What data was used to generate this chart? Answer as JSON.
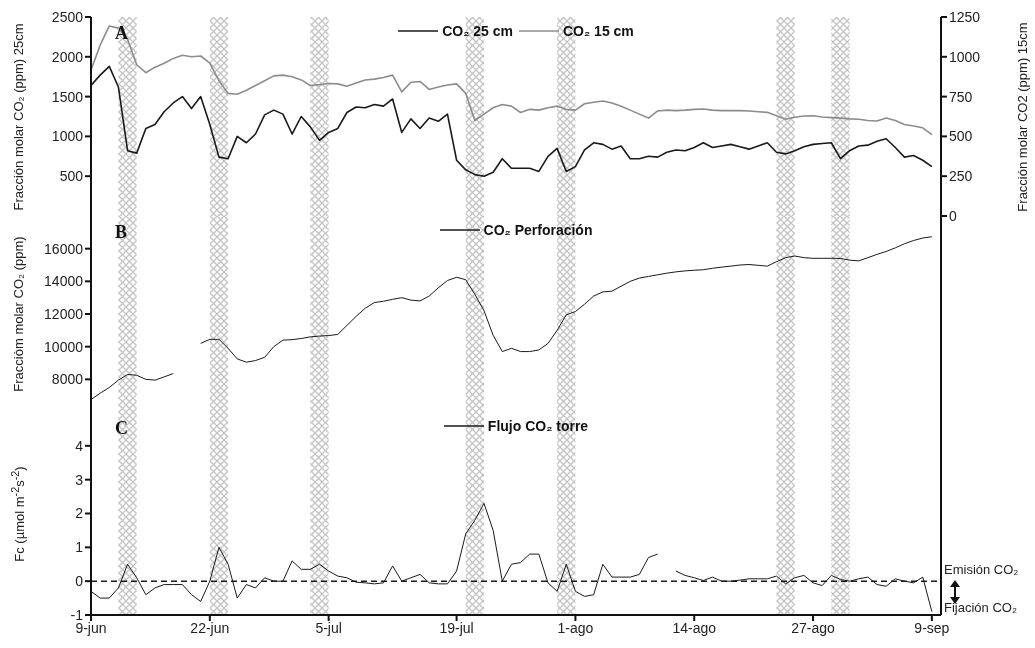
{
  "chart_data": [
    {
      "type": "line",
      "ylabel": "Fracción molar CO₂ (ppm) 25cm",
      "y2label": "Fracción molar CO2 (ppm) 15cm",
      "annotations": [
        "A"
      ],
      "legend": "top",
      "tick_labels": "y",
      "x": [
        "--06-09",
        "--06-10",
        "--06-11",
        "--06-12",
        "--06-13",
        "--06-14",
        "--06-15",
        "--06-16",
        "--06-17",
        "--06-18",
        "--06-19",
        "--06-20",
        "--06-21",
        "--06-22",
        "--06-23",
        "--06-24",
        "--06-25",
        "--06-26",
        "--06-27",
        "--06-28",
        "--06-29",
        "--06-30",
        "--07-01",
        "--07-02",
        "--07-03",
        "--07-04",
        "--07-05",
        "--07-06",
        "--07-07",
        "--07-08",
        "--07-09",
        "--07-10",
        "--07-11",
        "--07-12",
        "--07-13",
        "--07-14",
        "--07-15",
        "--07-16",
        "--07-17",
        "--07-18",
        "--07-19",
        "--07-20",
        "--07-21",
        "--07-22",
        "--07-23",
        "--07-24",
        "--07-25",
        "--07-26",
        "--07-27",
        "--07-28",
        "--07-29",
        "--07-30",
        "--07-31",
        "--08-01",
        "--08-02",
        "--08-03",
        "--08-04",
        "--08-05",
        "--08-06",
        "--08-07",
        "--08-08",
        "--08-09",
        "--08-10",
        "--08-11",
        "--08-12",
        "--08-13",
        "--08-14",
        "--08-15",
        "--08-16",
        "--08-17",
        "--08-18",
        "--08-19",
        "--08-20",
        "--08-21",
        "--08-22",
        "--08-23",
        "--08-24",
        "--08-25",
        "--08-26",
        "--08-27",
        "--08-28",
        "--08-29",
        "--08-30",
        "--08-31",
        "--09-01",
        "--09-02",
        "--09-03",
        "--09-04",
        "--09-05",
        "--09-06",
        "--09-07",
        "--09-08",
        "--09-09"
      ],
      "series": [
        {
          "name": "CO₂ 25 cm",
          "color": "#1a1a1a",
          "values": [
            1640,
            1770,
            1880,
            1620,
            820,
            790,
            1100,
            1150,
            1310,
            1420,
            1500,
            1350,
            1500,
            1150,
            740,
            720,
            1000,
            920,
            1030,
            1270,
            1330,
            1280,
            1030,
            1250,
            1120,
            950,
            1050,
            1100,
            1300,
            1370,
            1360,
            1400,
            1380,
            1470,
            1050,
            1220,
            1100,
            1230,
            1190,
            1280,
            700,
            580,
            520,
            500,
            550,
            720,
            600,
            600,
            600,
            560,
            750,
            850,
            560,
            620,
            830,
            920,
            900,
            840,
            880,
            720,
            720,
            750,
            740,
            800,
            830,
            820,
            860,
            920,
            860,
            880,
            900,
            870,
            840,
            880,
            920,
            800,
            780,
            820,
            870,
            900,
            910,
            920,
            720,
            820,
            880,
            890,
            940,
            970,
            860,
            740,
            760,
            700,
            620
          ]
        },
        {
          "name": "CO₂ 15 cm",
          "color": "#8c8c8c",
          "axis": "y2",
          "values": [
            917,
            1073,
            1194,
            1180,
            1110,
            950,
            900,
            935,
            960,
            990,
            1010,
            1000,
            1005,
            960,
            850,
            770,
            765,
            790,
            820,
            850,
            880,
            885,
            875,
            855,
            820,
            825,
            832,
            830,
            815,
            835,
            854,
            860,
            870,
            885,
            780,
            840,
            845,
            795,
            810,
            823,
            830,
            770,
            600,
            640,
            680,
            700,
            690,
            650,
            670,
            665,
            680,
            690,
            670,
            665,
            705,
            715,
            722,
            710,
            690,
            665,
            640,
            615,
            660,
            665,
            662,
            665,
            670,
            672,
            665,
            662,
            662,
            662,
            660,
            655,
            651,
            630,
            608,
            620,
            628,
            630,
            622,
            618,
            615,
            610,
            608,
            600,
            597,
            615,
            600,
            575,
            565,
            554,
            511
          ]
        }
      ],
      "xlim": [
        "--06-09",
        "--09-10"
      ],
      "xticks": [
        {
          "value": "--06-09",
          "label": "9-jun"
        },
        {
          "value": "--06-22",
          "label": "22-jun"
        },
        {
          "value": "--07-05",
          "label": "5-jul"
        },
        {
          "value": "--07-19",
          "label": "19-jul"
        },
        {
          "value": "--08-01",
          "label": "1-ago"
        },
        {
          "value": "--08-14",
          "label": "14-ago"
        },
        {
          "value": "--08-27",
          "label": "27-ago"
        },
        {
          "value": "--09-09",
          "label": "9-sep"
        }
      ],
      "ylim": [
        0,
        2500
      ],
      "yticks": [
        500,
        1000,
        1500,
        2000,
        2500
      ],
      "y2lim": [
        0,
        1250
      ],
      "y2ticks": [
        0,
        250,
        500,
        750,
        1000,
        1250
      ],
      "bands": [
        {
          "axis": "x",
          "from": "--06-12",
          "to": "--06-14",
          "color": "#c4c4c4"
        },
        {
          "axis": "x",
          "from": "--06-22",
          "to": "--06-24",
          "color": "#c4c4c4"
        },
        {
          "axis": "x",
          "from": "--07-03",
          "to": "--07-05",
          "color": "#c4c4c4"
        },
        {
          "axis": "x",
          "from": "--07-20",
          "to": "--07-22",
          "color": "#c4c4c4"
        },
        {
          "axis": "x",
          "from": "--07-30",
          "to": "--08-01",
          "color": "#c4c4c4"
        },
        {
          "axis": "x",
          "from": "--08-23",
          "to": "--08-25",
          "color": "#c4c4c4"
        },
        {
          "axis": "x",
          "from": "--08-29",
          "to": "--08-31",
          "color": "#c4c4c4"
        }
      ]
    },
    {
      "type": "line",
      "ylabel": "Fracciòm molar CO₂ (ppm)",
      "annotations": [
        "B"
      ],
      "legend": "top",
      "tick_labels": "y",
      "x": [
        "--06-09",
        "--06-10",
        "--06-11",
        "--06-12",
        "--06-13",
        "--06-14",
        "--06-15",
        "--06-16",
        "--06-17",
        "--06-18",
        "--06-19",
        "--06-20",
        "--06-21",
        "--06-22",
        "--06-23",
        "--06-24",
        "--06-25",
        "--06-26",
        "--06-27",
        "--06-28",
        "--06-29",
        "--06-30",
        "--07-01",
        "--07-02",
        "--07-03",
        "--07-04",
        "--07-05",
        "--07-06",
        "--07-07",
        "--07-08",
        "--07-09",
        "--07-10",
        "--07-11",
        "--07-12",
        "--07-13",
        "--07-14",
        "--07-15",
        "--07-16",
        "--07-17",
        "--07-18",
        "--07-19",
        "--07-20",
        "--07-21",
        "--07-22",
        "--07-23",
        "--07-24",
        "--07-25",
        "--07-26",
        "--07-27",
        "--07-28",
        "--07-29",
        "--07-30",
        "--07-31",
        "--08-01",
        "--08-02",
        "--08-03",
        "--08-04",
        "--08-05",
        "--08-06",
        "--08-07",
        "--08-08",
        "--08-09",
        "--08-10",
        "--08-11",
        "--08-12",
        "--08-13",
        "--08-14",
        "--08-15",
        "--08-16",
        "--08-17",
        "--08-18",
        "--08-19",
        "--08-20",
        "--08-21",
        "--08-22",
        "--08-23",
        "--08-24",
        "--08-25",
        "--08-26",
        "--08-27",
        "--08-28",
        "--08-29",
        "--08-30",
        "--08-31",
        "--09-01",
        "--09-02",
        "--09-03",
        "--09-04",
        "--09-05",
        "--09-06",
        "--09-07",
        "--09-08",
        "--09-09"
      ],
      "series": [
        {
          "name": "CO₂ Perforación",
          "color": "#1a1a1a",
          "values": [
            6760,
            7150,
            7500,
            7950,
            8300,
            8250,
            8000,
            7950,
            8150,
            8350,
            null,
            null,
            10200,
            10450,
            10450,
            9900,
            9250,
            9050,
            9150,
            9350,
            10000,
            10400,
            10430,
            10500,
            10600,
            10650,
            10680,
            10750,
            11300,
            11850,
            12350,
            12700,
            12780,
            12900,
            13000,
            12850,
            12800,
            13100,
            13600,
            14050,
            14250,
            14100,
            13200,
            12200,
            10700,
            9700,
            9900,
            9700,
            9700,
            9800,
            10200,
            11000,
            11950,
            12150,
            12600,
            13100,
            13350,
            13400,
            13700,
            14000,
            14200,
            14300,
            14400,
            14500,
            14580,
            14640,
            14680,
            14710,
            14800,
            14870,
            14930,
            15000,
            15030,
            14980,
            14930,
            15200,
            15450,
            15550,
            15450,
            15410,
            15410,
            15410,
            15400,
            15300,
            15250,
            15450,
            15650,
            15830,
            16050,
            16300,
            16500,
            16650,
            16730
          ]
        }
      ],
      "xlim": [
        "--06-09",
        "--09-10"
      ],
      "xticks": [
        {
          "value": "--06-09",
          "label": "9-jun"
        },
        {
          "value": "--06-22",
          "label": "22-jun"
        },
        {
          "value": "--07-05",
          "label": "5-jul"
        },
        {
          "value": "--07-19",
          "label": "19-jul"
        },
        {
          "value": "--08-01",
          "label": "1-ago"
        },
        {
          "value": "--08-14",
          "label": "14-ago"
        },
        {
          "value": "--08-27",
          "label": "27-ago"
        },
        {
          "value": "--09-09",
          "label": "9-sep"
        }
      ],
      "ylim": [
        6000,
        18000
      ],
      "yticks": [
        8000,
        10000,
        12000,
        14000,
        16000
      ],
      "bands": [
        {
          "axis": "x",
          "from": "--06-12",
          "to": "--06-14",
          "color": "#c4c4c4"
        },
        {
          "axis": "x",
          "from": "--06-22",
          "to": "--06-24",
          "color": "#c4c4c4"
        },
        {
          "axis": "x",
          "from": "--07-03",
          "to": "--07-05",
          "color": "#c4c4c4"
        },
        {
          "axis": "x",
          "from": "--07-20",
          "to": "--07-22",
          "color": "#c4c4c4"
        },
        {
          "axis": "x",
          "from": "--07-30",
          "to": "--08-01",
          "color": "#c4c4c4"
        },
        {
          "axis": "x",
          "from": "--08-23",
          "to": "--08-25",
          "color": "#c4c4c4"
        },
        {
          "axis": "x",
          "from": "--08-29",
          "to": "--08-31",
          "color": "#c4c4c4"
        }
      ]
    },
    {
      "type": "line",
      "ylabel": "Fc (µmol m$^{-2}$s$^{-2}$)",
      "annotations": [
        "C",
        "Emisión CO₂",
        "Fijación CO₂"
      ],
      "legend": "top",
      "x": [
        "--06-09",
        "--06-10",
        "--06-11",
        "--06-12",
        "--06-13",
        "--06-14",
        "--06-15",
        "--06-16",
        "--06-17",
        "--06-18",
        "--06-19",
        "--06-20",
        "--06-21",
        "--06-22",
        "--06-23",
        "--06-24",
        "--06-25",
        "--06-26",
        "--06-27",
        "--06-28",
        "--06-29",
        "--06-30",
        "--07-01",
        "--07-02",
        "--07-03",
        "--07-04",
        "--07-05",
        "--07-06",
        "--07-07",
        "--07-08",
        "--07-09",
        "--07-10",
        "--07-11",
        "--07-12",
        "--07-13",
        "--07-14",
        "--07-15",
        "--07-16",
        "--07-17",
        "--07-18",
        "--07-19",
        "--07-20",
        "--07-21",
        "--07-22",
        "--07-23",
        "--07-24",
        "--07-25",
        "--07-26",
        "--07-27",
        "--07-28",
        "--07-29",
        "--07-30",
        "--07-31",
        "--08-01",
        "--08-02",
        "--08-03",
        "--08-04",
        "--08-05",
        "--08-06",
        "--08-07",
        "--08-08",
        "--08-09",
        "--08-10",
        "--08-11",
        "--08-12",
        "--08-13",
        "--08-14",
        "--08-15",
        "--08-16",
        "--08-17",
        "--08-18",
        "--08-19",
        "--08-20",
        "--08-21",
        "--08-22",
        "--08-23",
        "--08-24",
        "--08-25",
        "--08-26",
        "--08-27",
        "--08-28",
        "--08-29",
        "--08-30",
        "--08-31",
        "--09-01",
        "--09-02",
        "--09-03",
        "--09-04",
        "--09-05",
        "--09-06",
        "--09-07",
        "--09-08",
        "--09-09"
      ],
      "series": [
        {
          "name": "Flujo CO₂ torre",
          "color": "#1a1a1a",
          "values": [
            -0.3,
            -0.5,
            -0.5,
            -0.2,
            0.5,
            0.1,
            -0.4,
            -0.2,
            -0.1,
            -0.1,
            -0.1,
            -0.4,
            -0.6,
            0,
            1.0,
            0.5,
            -0.5,
            -0.1,
            -0.2,
            0.1,
            0,
            0,
            0.6,
            0.35,
            0.35,
            0.5,
            0.3,
            0.15,
            0.1,
            -0.03,
            -0.05,
            -0.08,
            -0.05,
            0.45,
            0,
            0.1,
            0.2,
            -0.05,
            -0.08,
            -0.08,
            0.3,
            1.4,
            1.8,
            2.3,
            1.5,
            0,
            0.5,
            0.55,
            0.8,
            0.8,
            -0.05,
            -0.3,
            0.5,
            -0.3,
            -0.45,
            -0.4,
            0.5,
            0.12,
            0.12,
            0.12,
            0.2,
            0.7,
            0.8,
            null,
            0.3,
            0.17,
            0.1,
            0.02,
            0.12,
            0,
            0,
            0.03,
            0.07,
            0.07,
            0.07,
            0.15,
            -0.08,
            0.1,
            0.17,
            -0.05,
            -0.13,
            0.17,
            0.05,
            0,
            0.07,
            0.12,
            -0.1,
            -0.15,
            0.07,
            0,
            -0.05,
            0.12,
            -0.9
          ]
        }
      ],
      "xlim": [
        "--06-09",
        "--09-10"
      ],
      "xticks": [
        {
          "value": "--06-09",
          "label": "9-jun"
        },
        {
          "value": "--06-22",
          "label": "22-jun"
        },
        {
          "value": "--07-05",
          "label": "5-jul"
        },
        {
          "value": "--07-19",
          "label": "19-jul"
        },
        {
          "value": "--08-01",
          "label": "1-ago"
        },
        {
          "value": "--08-14",
          "label": "14-ago"
        },
        {
          "value": "--08-27",
          "label": "27-ago"
        },
        {
          "value": "--09-09",
          "label": "9-sep"
        }
      ],
      "ylim": [
        -1,
        5
      ],
      "yticks": [
        -1,
        0,
        1,
        2,
        3,
        4
      ],
      "ref_lines": [
        {
          "axis": "y",
          "value": 0,
          "line_style": "dashed",
          "color": "#1a1a1a"
        }
      ],
      "bands": [
        {
          "axis": "x",
          "from": "--06-12",
          "to": "--06-14",
          "color": "#c4c4c4"
        },
        {
          "axis": "x",
          "from": "--06-22",
          "to": "--06-24",
          "color": "#c4c4c4"
        },
        {
          "axis": "x",
          "from": "--07-03",
          "to": "--07-05",
          "color": "#c4c4c4"
        },
        {
          "axis": "x",
          "from": "--07-20",
          "to": "--07-22",
          "color": "#c4c4c4"
        },
        {
          "axis": "x",
          "from": "--07-30",
          "to": "--08-01",
          "color": "#c4c4c4"
        },
        {
          "axis": "x",
          "from": "--08-23",
          "to": "--08-25",
          "color": "#c4c4c4"
        },
        {
          "axis": "x",
          "from": "--08-29",
          "to": "--08-31",
          "color": "#c4c4c4"
        }
      ]
    }
  ]
}
